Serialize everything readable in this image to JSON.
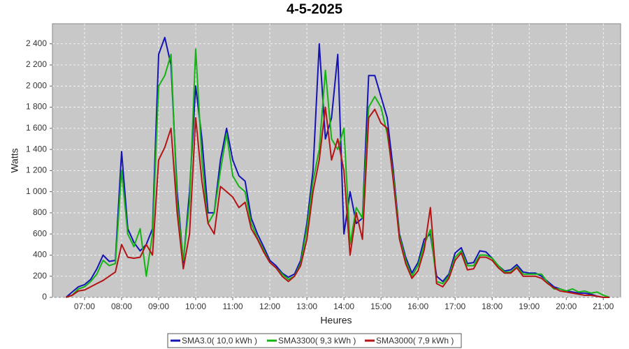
{
  "chart_data": {
    "type": "line",
    "title": "4-5-2025",
    "x_label": "Heures",
    "y_label": "Watts",
    "xlim": [
      368,
      1288
    ],
    "ylim": [
      0,
      2590
    ],
    "grid": true,
    "background": "#c8c8c8",
    "xticks": [
      {
        "value": 420,
        "label": "07:00"
      },
      {
        "value": 480,
        "label": "08:00"
      },
      {
        "value": 540,
        "label": "09:00"
      },
      {
        "value": 600,
        "label": "10:00"
      },
      {
        "value": 660,
        "label": "11:00"
      },
      {
        "value": 720,
        "label": "12:00"
      },
      {
        "value": 780,
        "label": "13:00"
      },
      {
        "value": 840,
        "label": "14:00"
      },
      {
        "value": 900,
        "label": "15:00"
      },
      {
        "value": 960,
        "label": "16:00"
      },
      {
        "value": 1020,
        "label": "17:00"
      },
      {
        "value": 1080,
        "label": "18:00"
      },
      {
        "value": 1140,
        "label": "19:00"
      },
      {
        "value": 1200,
        "label": "20:00"
      },
      {
        "value": 1260,
        "label": "21:00"
      }
    ],
    "yticks": [
      0,
      200,
      400,
      600,
      800,
      {
        "value": 1000,
        "label": "1 000"
      },
      {
        "value": 1200,
        "label": "1 200"
      },
      {
        "value": 1400,
        "label": "1 400"
      },
      {
        "value": 1600,
        "label": "1 600"
      },
      {
        "value": 1800,
        "label": "1 800"
      },
      {
        "value": 2000,
        "label": "2 000"
      },
      {
        "value": 2200,
        "label": "2 200"
      },
      {
        "value": 2400,
        "label": "2 400"
      }
    ],
    "x": [
      390,
      400,
      410,
      420,
      430,
      440,
      450,
      460,
      470,
      480,
      490,
      500,
      510,
      520,
      530,
      540,
      550,
      560,
      570,
      580,
      590,
      600,
      610,
      620,
      630,
      640,
      650,
      660,
      670,
      680,
      690,
      700,
      710,
      720,
      730,
      740,
      750,
      760,
      770,
      780,
      790,
      800,
      810,
      820,
      830,
      840,
      850,
      860,
      870,
      880,
      890,
      900,
      910,
      920,
      930,
      940,
      950,
      960,
      970,
      980,
      990,
      1000,
      1010,
      1020,
      1030,
      1040,
      1050,
      1060,
      1070,
      1080,
      1090,
      1100,
      1110,
      1120,
      1130,
      1140,
      1150,
      1160,
      1170,
      1180,
      1190,
      1200,
      1210,
      1220,
      1230,
      1240,
      1250,
      1260,
      1270
    ],
    "series": [
      {
        "name": "SMA3.0( 10,0 kWh )",
        "color": "#1414b4",
        "values": [
          0,
          50,
          100,
          120,
          170,
          270,
          400,
          340,
          350,
          1380,
          650,
          520,
          440,
          500,
          650,
          2300,
          2460,
          2200,
          1000,
          330,
          1000,
          2000,
          1500,
          800,
          800,
          1300,
          1600,
          1300,
          1150,
          1100,
          750,
          600,
          480,
          350,
          300,
          230,
          190,
          220,
          350,
          700,
          1200,
          2400,
          1500,
          1700,
          2300,
          600,
          1000,
          700,
          750,
          2100,
          2100,
          1900,
          1700,
          1200,
          600,
          380,
          230,
          330,
          550,
          600,
          200,
          150,
          220,
          420,
          470,
          320,
          330,
          440,
          430,
          370,
          300,
          250,
          260,
          310,
          240,
          230,
          230,
          200,
          150,
          100,
          80,
          60,
          50,
          40,
          40,
          30,
          10,
          0,
          0
        ]
      },
      {
        "name": "SMA3300( 9,3 kWh )",
        "color": "#14b414",
        "values": [
          0,
          20,
          80,
          100,
          150,
          220,
          350,
          300,
          320,
          1200,
          600,
          480,
          650,
          200,
          600,
          2000,
          2100,
          2300,
          900,
          350,
          900,
          2350,
          1300,
          700,
          800,
          1200,
          1550,
          1150,
          1050,
          1000,
          700,
          560,
          450,
          330,
          280,
          220,
          170,
          200,
          320,
          650,
          1100,
          1400,
          2150,
          1500,
          1400,
          1600,
          500,
          850,
          750,
          1800,
          1900,
          1800,
          1550,
          1150,
          580,
          350,
          200,
          300,
          500,
          640,
          150,
          130,
          200,
          380,
          440,
          300,
          300,
          400,
          400,
          370,
          300,
          240,
          240,
          290,
          220,
          220,
          220,
          220,
          140,
          80,
          80,
          60,
          80,
          50,
          60,
          40,
          50,
          20,
          0
        ]
      },
      {
        "name": "SMA3000( 7,9 kWh )",
        "color": "#b41414",
        "values": [
          0,
          20,
          60,
          70,
          100,
          130,
          160,
          200,
          240,
          500,
          380,
          370,
          380,
          500,
          400,
          1300,
          1420,
          1600,
          800,
          270,
          600,
          1700,
          1100,
          700,
          600,
          1050,
          1000,
          950,
          850,
          900,
          650,
          550,
          430,
          330,
          280,
          200,
          150,
          200,
          300,
          550,
          1000,
          1300,
          1800,
          1300,
          1500,
          1200,
          400,
          800,
          550,
          1700,
          1780,
          1650,
          1600,
          1100,
          550,
          320,
          180,
          250,
          450,
          850,
          130,
          100,
          180,
          350,
          420,
          260,
          270,
          380,
          380,
          350,
          280,
          230,
          230,
          280,
          200,
          200,
          200,
          180,
          130,
          90,
          60,
          50,
          40,
          30,
          20,
          20,
          10,
          0,
          0
        ]
      }
    ]
  }
}
